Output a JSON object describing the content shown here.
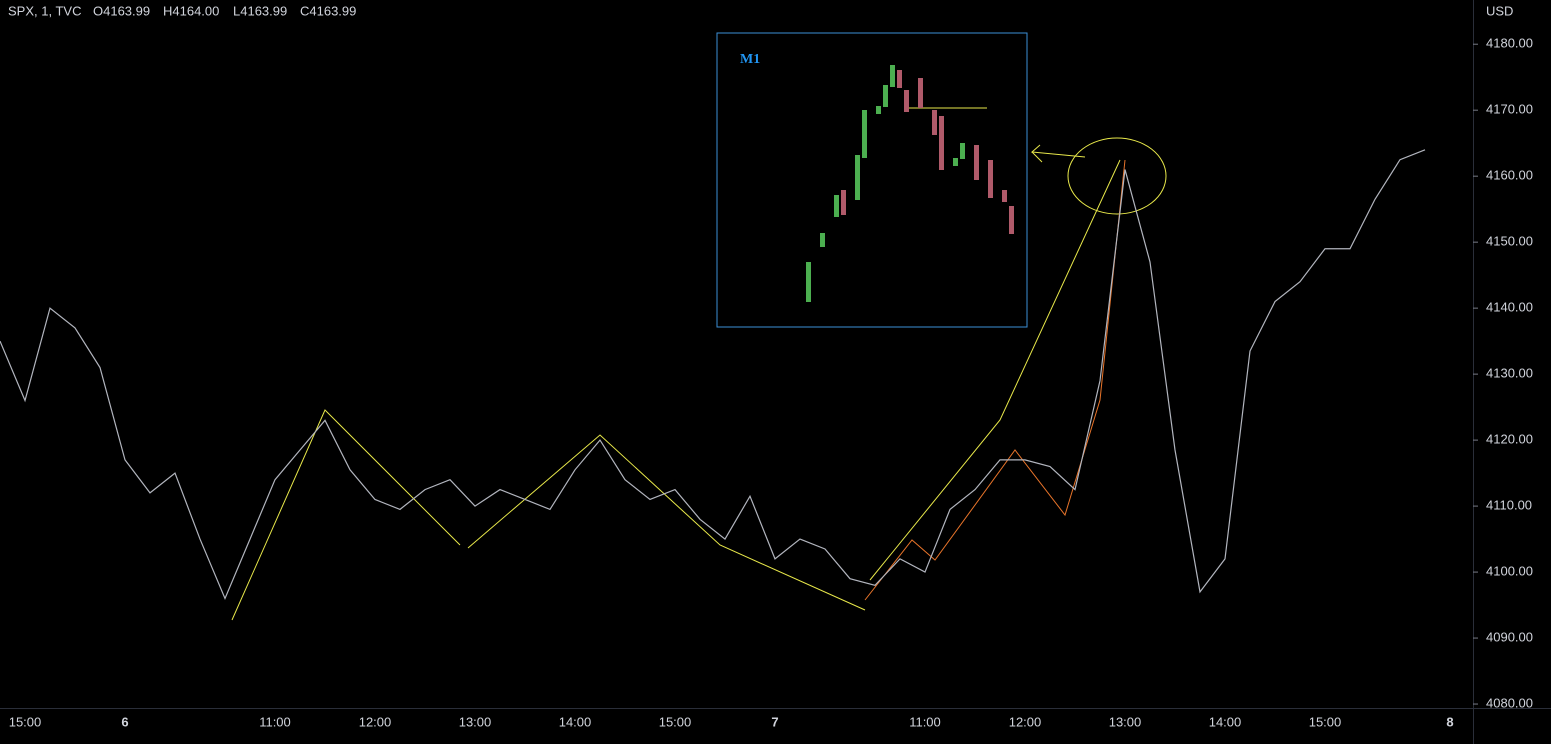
{
  "chart_data": {
    "type": "line",
    "title": "SPX, 1, TVC",
    "ohlc": [
      "O4163.99",
      "H4164.00",
      "L4163.99",
      "C4163.99"
    ],
    "y_unit": "USD",
    "annotations": [
      "M1"
    ],
    "color": "#b2b5be",
    "grid": false,
    "categories": [
      null,
      "15:00",
      null,
      null,
      null,
      "6",
      null,
      null,
      null,
      null,
      null,
      "11:00",
      null,
      null,
      null,
      "12:00",
      null,
      null,
      null,
      "13:00",
      null,
      null,
      null,
      "14:00",
      null,
      null,
      null,
      "15:00",
      null,
      null,
      null,
      "7",
      null,
      null,
      null,
      null,
      null,
      "11:00",
      null,
      null,
      null,
      "12:00",
      null,
      null,
      null,
      "13:00",
      null,
      null,
      null,
      "14:00",
      null,
      null,
      null,
      "15:00",
      null,
      null,
      null,
      null,
      "8"
    ],
    "values": [
      4135,
      4126,
      4140,
      4137,
      4131,
      4117,
      4112,
      4115,
      4105,
      4096,
      4105,
      4114,
      4118.5,
      4123,
      4115.5,
      4111,
      4109.5,
      4112.5,
      4114,
      4110,
      4112.5,
      4111,
      4109.5,
      4115.5,
      4120,
      4114,
      4111,
      4112.5,
      4108,
      4105,
      4111.5,
      4102,
      4105,
      4103.5,
      4099,
      4098,
      4102,
      4100,
      4109.5,
      4112.5,
      4117,
      4117,
      4116,
      4112.5,
      4129,
      4161,
      4147,
      4118.5,
      4097,
      4102,
      4133.5,
      4141,
      4144,
      4149,
      4149,
      4156.5,
      4162.5,
      4164,
      null
    ],
    "ylim": [
      4079.4,
      4186.7
    ],
    "yticks": [
      {
        "value": 4080,
        "label": "4080.00"
      },
      {
        "value": 4090,
        "label": "4090.00"
      },
      {
        "value": 4100,
        "label": "4100.00"
      },
      {
        "value": 4110,
        "label": "4110.00"
      },
      {
        "value": 4120,
        "label": "4120.00"
      },
      {
        "value": 4130,
        "label": "4130.00"
      },
      {
        "value": 4140,
        "label": "4140.00"
      },
      {
        "value": 4150,
        "label": "4150.00"
      },
      {
        "value": 4160,
        "label": "4160.00"
      },
      {
        "value": 4170,
        "label": "4170.00"
      },
      {
        "value": 4180,
        "label": "4180.00"
      }
    ]
  }
}
